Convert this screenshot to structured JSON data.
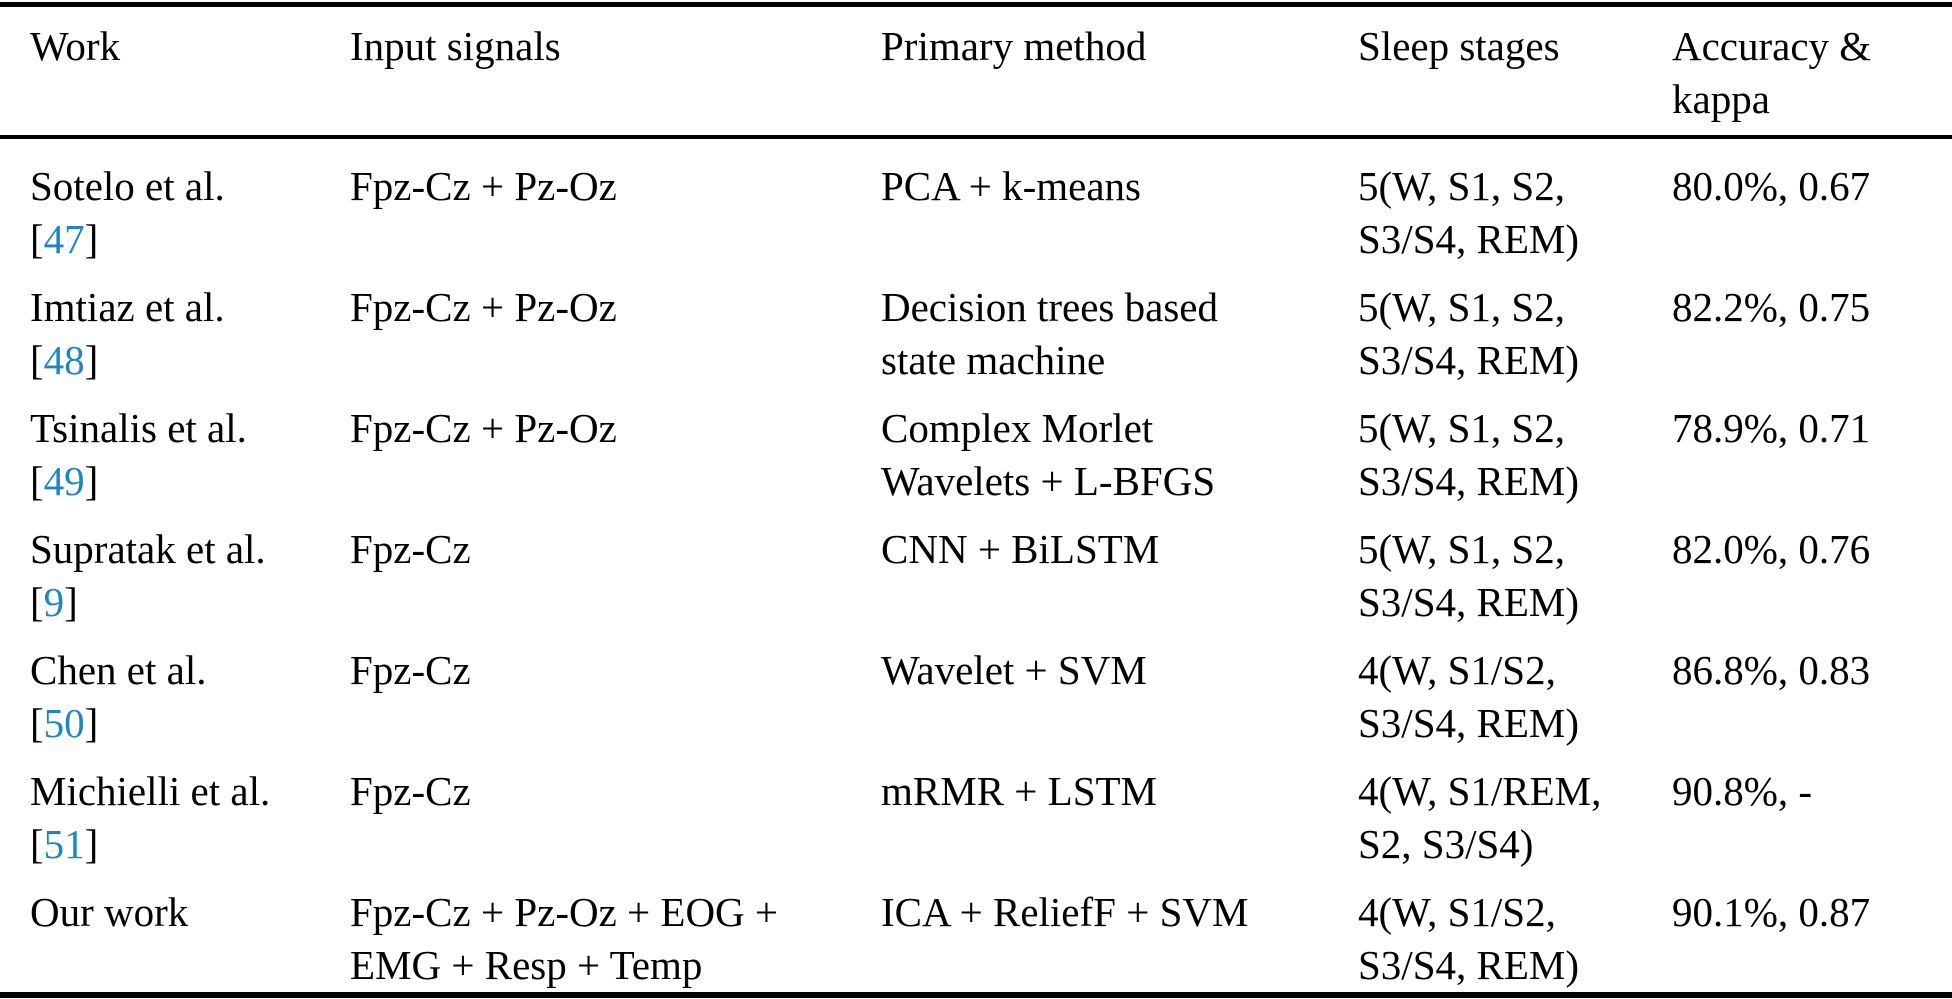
{
  "colors": {
    "citation_blue": "#1e86c0",
    "text_black": "#000000",
    "rule_black": "#000000"
  },
  "punctuation": {
    "bracket_open": "[",
    "bracket_close": "]"
  },
  "table": {
    "headers": [
      "Work",
      "Input signals",
      "Primary method",
      "Sleep stages",
      "Accuracy & kappa"
    ],
    "rows": [
      {
        "work": "Sotelo et al.",
        "ref": "47",
        "input_line1": "Fpz-Cz + Pz-Oz",
        "method_line1": "PCA + k-means",
        "stages_line1": "5(W, S1, S2,",
        "stages_line2": "S3/S4, REM)",
        "accuracy": "80.0%, 0.67"
      },
      {
        "work": "Imtiaz et al.",
        "ref": "48",
        "input_line1": "Fpz-Cz + Pz-Oz",
        "method_line1": "Decision trees based",
        "method_line2": "state machine",
        "stages_line1": "5(W, S1, S2,",
        "stages_line2": "S3/S4, REM)",
        "accuracy": "82.2%, 0.75"
      },
      {
        "work": "Tsinalis et al.",
        "ref": "49",
        "input_line1": "Fpz-Cz + Pz-Oz",
        "method_line1": "Complex Morlet",
        "method_line2": "Wavelets + L-BFGS",
        "stages_line1": "5(W, S1, S2,",
        "stages_line2": "S3/S4, REM)",
        "accuracy": "78.9%, 0.71"
      },
      {
        "work": "Supratak et al.",
        "ref": "9",
        "input_line1": "Fpz-Cz",
        "method_line1": "CNN + BiLSTM",
        "stages_line1": "5(W, S1, S2,",
        "stages_line2": "S3/S4, REM)",
        "accuracy": "82.0%, 0.76"
      },
      {
        "work": "Chen et al.",
        "ref": "50",
        "input_line1": "Fpz-Cz",
        "method_line1": "Wavelet + SVM",
        "stages_line1": "4(W, S1/S2,",
        "stages_line2": "S3/S4, REM)",
        "accuracy": "86.8%, 0.83"
      },
      {
        "work": "Michielli et al.",
        "ref": "51",
        "input_line1": "Fpz-Cz",
        "method_line1": "mRMR + LSTM",
        "stages_line1": "4(W, S1/REM,",
        "stages_line2": "S2, S3/S4)",
        "accuracy": "90.8%, -"
      },
      {
        "work": "Our work",
        "input_line1": "Fpz-Cz + Pz-Oz + EOG +",
        "input_line2": "EMG + Resp + Temp",
        "method_line1": "ICA + ReliefF + SVM",
        "stages_line1": "4(W, S1/S2,",
        "stages_line2": "S3/S4, REM)",
        "accuracy": "90.1%, 0.87"
      }
    ]
  }
}
